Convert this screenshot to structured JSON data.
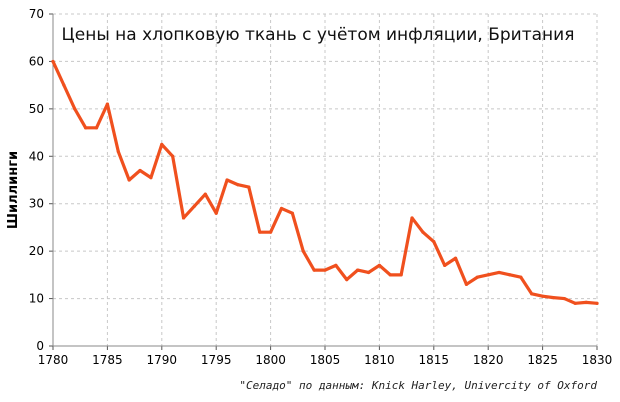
{
  "chart_data": {
    "type": "line",
    "title": "Цены на хлопковую ткань с учётом инфляции, Британия",
    "xlabel": "",
    "ylabel": "Шиллинги",
    "xlim": [
      1780,
      1830
    ],
    "ylim": [
      0,
      70
    ],
    "x_ticks": [
      "1780",
      "1785",
      "1790",
      "1795",
      "1800",
      "1805",
      "1810",
      "1815",
      "1820",
      "1825",
      "1830"
    ],
    "y_ticks": [
      "0",
      "10",
      "20",
      "30",
      "40",
      "50",
      "60",
      "70"
    ],
    "grid": true,
    "legend": "none",
    "series": [
      {
        "color": "#f0501e",
        "x": [
          1780,
          1781,
          1782,
          1783,
          1784,
          1785,
          1786,
          1787,
          1788,
          1789,
          1790,
          1791,
          1792,
          1793,
          1794,
          1795,
          1796,
          1797,
          1798,
          1799,
          1800,
          1801,
          1802,
          1803,
          1804,
          1805,
          1806,
          1807,
          1808,
          1809,
          1810,
          1811,
          1812,
          1813,
          1814,
          1815,
          1816,
          1817,
          1818,
          1819,
          1820,
          1821,
          1822,
          1823,
          1824,
          1825,
          1826,
          1827,
          1828,
          1829,
          1830
        ],
        "values": [
          60,
          55,
          50,
          46,
          46,
          51,
          41,
          35,
          37,
          35.5,
          42.5,
          40,
          27,
          29.5,
          32,
          28,
          35,
          34,
          33.5,
          24,
          24,
          29,
          28,
          20,
          16,
          16,
          17,
          14,
          16,
          15.5,
          17,
          15,
          15,
          27,
          24,
          22,
          17,
          18.5,
          13,
          14.5,
          15,
          15.5,
          15,
          14.5,
          11,
          10.5,
          10.2,
          10,
          9,
          9.2,
          9
        ]
      }
    ],
    "source": "\"Селадо\" по данным: Knick Harley, Univercity of Oxford"
  }
}
